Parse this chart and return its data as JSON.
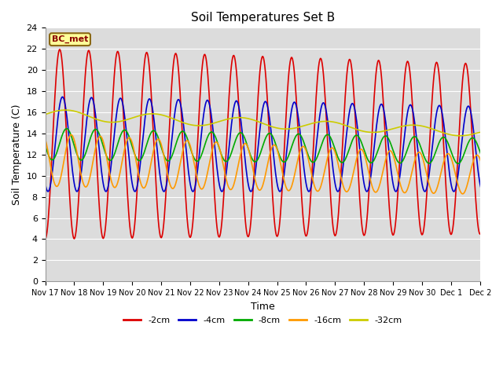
{
  "title": "Soil Temperatures Set B",
  "xlabel": "Time",
  "ylabel": "Soil Temperature (C)",
  "ylim": [
    0,
    24
  ],
  "yticks": [
    0,
    2,
    4,
    6,
    8,
    10,
    12,
    14,
    16,
    18,
    20,
    22,
    24
  ],
  "bg_color": "#dcdcdc",
  "legend_label": "BC_met",
  "legend_bg": "#ffff99",
  "legend_border": "#8B6914",
  "series_order": [
    "-2cm",
    "-4cm",
    "-8cm",
    "-16cm",
    "-32cm"
  ],
  "series": {
    "-2cm": {
      "color": "#dd0000",
      "lw": 1.2
    },
    "-4cm": {
      "color": "#0000cc",
      "lw": 1.2
    },
    "-8cm": {
      "color": "#00aa00",
      "lw": 1.2
    },
    "-16cm": {
      "color": "#ff9900",
      "lw": 1.2
    },
    "-32cm": {
      "color": "#cccc00",
      "lw": 1.2
    }
  },
  "xtick_labels": [
    "Nov 17",
    "Nov 18",
    "Nov 19",
    "Nov 20",
    "Nov 21",
    "Nov 22",
    "Nov 23",
    "Nov 24",
    "Nov 25",
    "Nov 26",
    "Nov 27",
    "Nov 28",
    "Nov 29",
    "Nov 30",
    "Dec 1",
    "Dec 2"
  ],
  "n_days": 16,
  "pts_per_day": 48
}
